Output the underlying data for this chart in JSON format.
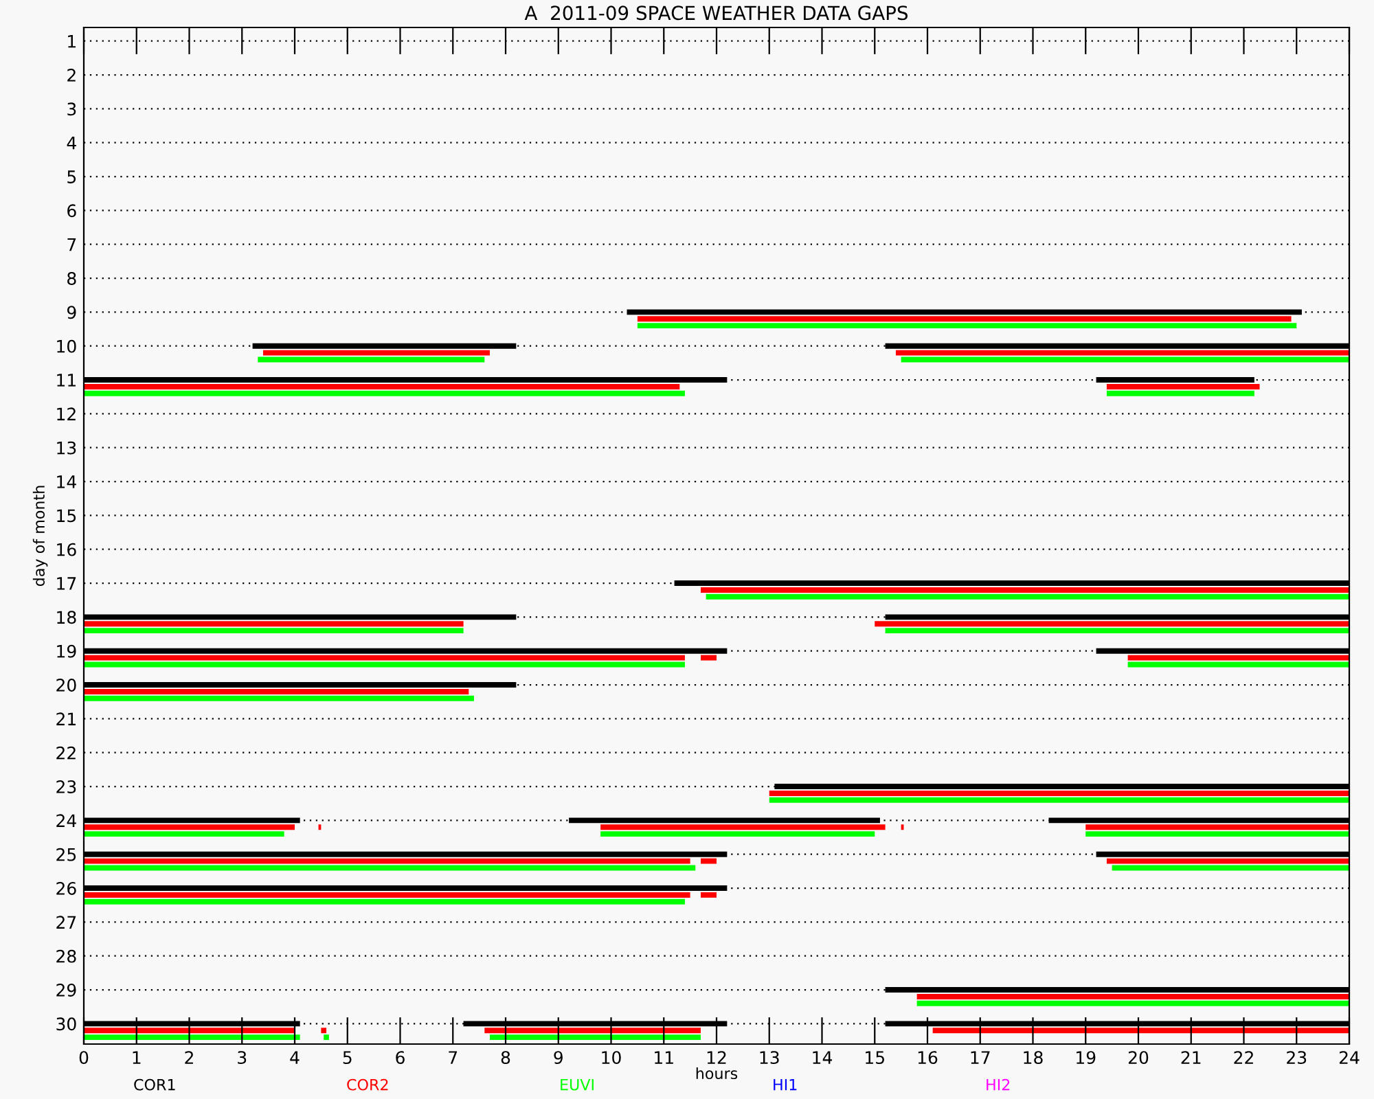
{
  "chart_data": {
    "type": "bar",
    "orientation": "horizontal",
    "title": "A  2011-09 SPACE WEATHER DATA GAPS",
    "xlabel": "hours",
    "ylabel": "day of month",
    "categories": [
      "1",
      "2",
      "3",
      "4",
      "5",
      "6",
      "7",
      "8",
      "9",
      "10",
      "11",
      "12",
      "13",
      "14",
      "15",
      "16",
      "17",
      "18",
      "19",
      "20",
      "21",
      "22",
      "23",
      "24",
      "25",
      "26",
      "27",
      "28",
      "29",
      "30"
    ],
    "xlim": [
      0,
      24
    ],
    "xticks": [
      0,
      1,
      2,
      3,
      4,
      5,
      6,
      7,
      8,
      9,
      10,
      11,
      12,
      13,
      14,
      15,
      16,
      17,
      18,
      19,
      20,
      21,
      22,
      23,
      24
    ],
    "grid": "y",
    "legend": "bottom",
    "series": [
      {
        "name": "COR1",
        "color": "#000000",
        "base": [
          null,
          null,
          null,
          null,
          null,
          null,
          null,
          null,
          10.3,
          3.2,
          0,
          null,
          null,
          null,
          null,
          null,
          11.2,
          0,
          0,
          0,
          null,
          null,
          13.1,
          0,
          0,
          0,
          null,
          null,
          15.2,
          0
        ],
        "values": [
          null,
          null,
          null,
          null,
          null,
          null,
          null,
          null,
          12.8,
          5.0,
          12.2,
          null,
          null,
          null,
          null,
          null,
          12.8,
          8.2,
          12.2,
          8.2,
          null,
          null,
          10.9,
          4.1,
          12.2,
          12.2,
          null,
          null,
          8.8,
          4.1
        ]
      },
      {
        "name": "COR2",
        "color": "#ff0000",
        "base": [
          null,
          null,
          null,
          null,
          null,
          null,
          null,
          null,
          10.5,
          3.4,
          0,
          null,
          null,
          null,
          null,
          null,
          11.7,
          0,
          0,
          0,
          null,
          null,
          13.0,
          0,
          0,
          0,
          null,
          null,
          15.8,
          0
        ],
        "values": [
          null,
          null,
          null,
          null,
          null,
          null,
          null,
          null,
          12.4,
          4.3,
          11.3,
          null,
          null,
          null,
          null,
          null,
          12.3,
          7.2,
          11.4,
          7.3,
          null,
          null,
          11.0,
          4.0,
          11.5,
          11.5,
          null,
          null,
          8.2,
          4.0
        ]
      },
      {
        "name": "EUVI",
        "color": "#00ff00",
        "base": [
          null,
          null,
          null,
          null,
          null,
          null,
          null,
          null,
          10.5,
          3.3,
          0,
          null,
          null,
          null,
          null,
          null,
          11.8,
          0,
          0,
          0,
          null,
          null,
          13.0,
          0,
          0,
          0,
          null,
          null,
          15.8,
          0
        ],
        "values": [
          null,
          null,
          null,
          null,
          null,
          null,
          null,
          null,
          12.5,
          4.3,
          11.4,
          null,
          null,
          null,
          null,
          null,
          12.2,
          7.2,
          11.4,
          7.4,
          null,
          null,
          11.0,
          3.8,
          11.6,
          11.4,
          null,
          null,
          8.2,
          4.1
        ]
      },
      {
        "name": "HI1",
        "color": "#0000ff",
        "base": [
          null,
          null,
          null,
          null,
          null,
          null,
          null,
          null,
          null,
          null,
          null,
          null,
          null,
          null,
          null,
          null,
          null,
          null,
          null,
          null,
          null,
          null,
          null,
          null,
          null,
          null,
          null,
          null,
          null,
          null
        ],
        "values": [
          null,
          null,
          null,
          null,
          null,
          null,
          null,
          null,
          null,
          null,
          null,
          null,
          null,
          null,
          null,
          null,
          null,
          null,
          null,
          null,
          null,
          null,
          null,
          null,
          null,
          null,
          null,
          null,
          null,
          null
        ]
      },
      {
        "name": "HI2",
        "color": "#ff00ff",
        "base": [
          null,
          null,
          null,
          null,
          null,
          null,
          null,
          null,
          null,
          null,
          null,
          null,
          null,
          null,
          null,
          null,
          null,
          null,
          null,
          null,
          null,
          null,
          null,
          null,
          null,
          null,
          null,
          null,
          null,
          null
        ],
        "values": [
          null,
          null,
          null,
          null,
          null,
          null,
          null,
          null,
          null,
          null,
          null,
          null,
          null,
          null,
          null,
          null,
          null,
          null,
          null,
          null,
          null,
          null,
          null,
          null,
          null,
          null,
          null,
          null,
          null,
          null
        ]
      },
      {
        "color": "#000000",
        "base": [
          null,
          null,
          null,
          null,
          null,
          null,
          null,
          null,
          null,
          15.2,
          19.2,
          null,
          null,
          null,
          null,
          null,
          null,
          15.2,
          19.2,
          null,
          null,
          null,
          null,
          9.2,
          19.2,
          null,
          null,
          null,
          null,
          7.2
        ],
        "values": [
          null,
          null,
          null,
          null,
          null,
          null,
          null,
          null,
          null,
          8.8,
          3.0,
          null,
          null,
          null,
          null,
          null,
          null,
          8.8,
          4.8,
          null,
          null,
          null,
          null,
          5.9,
          4.8,
          null,
          null,
          null,
          null,
          5.0
        ]
      },
      {
        "color": "#000000",
        "base": [
          null,
          null,
          null,
          null,
          null,
          null,
          null,
          null,
          null,
          null,
          null,
          null,
          null,
          null,
          null,
          null,
          null,
          null,
          null,
          null,
          null,
          null,
          null,
          18.3,
          null,
          null,
          null,
          null,
          null,
          15.2
        ],
        "values": [
          null,
          null,
          null,
          null,
          null,
          null,
          null,
          null,
          null,
          null,
          null,
          null,
          null,
          null,
          null,
          null,
          null,
          null,
          null,
          null,
          null,
          null,
          null,
          5.7,
          null,
          null,
          null,
          null,
          null,
          8.8
        ]
      },
      {
        "color": "#ff0000",
        "base": [
          null,
          null,
          null,
          null,
          null,
          null,
          null,
          null,
          null,
          15.4,
          19.4,
          null,
          null,
          null,
          null,
          null,
          null,
          15.0,
          11.7,
          null,
          null,
          null,
          null,
          4.45,
          11.7,
          11.7,
          null,
          null,
          null,
          4.5
        ],
        "values": [
          null,
          null,
          null,
          null,
          null,
          null,
          null,
          null,
          null,
          8.6,
          2.9,
          null,
          null,
          null,
          null,
          null,
          null,
          9.0,
          0.3,
          null,
          null,
          null,
          null,
          0.05,
          0.3,
          0.3,
          null,
          null,
          null,
          0.1
        ]
      },
      {
        "color": "#ff0000",
        "base": [
          null,
          null,
          null,
          null,
          null,
          null,
          null,
          null,
          null,
          null,
          null,
          null,
          null,
          null,
          null,
          null,
          null,
          null,
          19.8,
          null,
          null,
          null,
          null,
          9.8,
          19.4,
          null,
          null,
          null,
          null,
          7.6
        ],
        "values": [
          null,
          null,
          null,
          null,
          null,
          null,
          null,
          null,
          null,
          null,
          null,
          null,
          null,
          null,
          null,
          null,
          null,
          null,
          4.2,
          null,
          null,
          null,
          null,
          5.4,
          4.6,
          null,
          null,
          null,
          null,
          4.1
        ]
      },
      {
        "color": "#ff0000",
        "base": [
          null,
          null,
          null,
          null,
          null,
          null,
          null,
          null,
          null,
          null,
          null,
          null,
          null,
          null,
          null,
          null,
          null,
          null,
          null,
          null,
          null,
          null,
          null,
          15.5,
          null,
          null,
          null,
          null,
          null,
          16.1
        ],
        "values": [
          null,
          null,
          null,
          null,
          null,
          null,
          null,
          null,
          null,
          null,
          null,
          null,
          null,
          null,
          null,
          null,
          null,
          null,
          null,
          null,
          null,
          null,
          null,
          0.05,
          null,
          null,
          null,
          null,
          null,
          7.9
        ]
      },
      {
        "color": "#ff0000",
        "base": [
          null,
          null,
          null,
          null,
          null,
          null,
          null,
          null,
          null,
          null,
          null,
          null,
          null,
          null,
          null,
          null,
          null,
          null,
          null,
          null,
          null,
          null,
          null,
          19.0,
          null,
          null,
          null,
          null,
          null,
          null
        ],
        "values": [
          null,
          null,
          null,
          null,
          null,
          null,
          null,
          null,
          null,
          null,
          null,
          null,
          null,
          null,
          null,
          null,
          null,
          null,
          null,
          null,
          null,
          null,
          null,
          5.0,
          null,
          null,
          null,
          null,
          null,
          null
        ]
      },
      {
        "color": "#00ff00",
        "base": [
          null,
          null,
          null,
          null,
          null,
          null,
          null,
          null,
          null,
          15.5,
          19.4,
          null,
          null,
          null,
          null,
          null,
          null,
          15.2,
          19.8,
          null,
          null,
          null,
          null,
          9.8,
          19.5,
          null,
          null,
          null,
          null,
          4.55
        ],
        "values": [
          null,
          null,
          null,
          null,
          null,
          null,
          null,
          null,
          null,
          8.5,
          2.8,
          null,
          null,
          null,
          null,
          null,
          null,
          8.8,
          4.2,
          null,
          null,
          null,
          null,
          5.2,
          4.5,
          null,
          null,
          null,
          null,
          0.1
        ]
      },
      {
        "color": "#00ff00",
        "base": [
          null,
          null,
          null,
          null,
          null,
          null,
          null,
          null,
          null,
          null,
          null,
          null,
          null,
          null,
          null,
          null,
          null,
          null,
          null,
          null,
          null,
          null,
          null,
          19.0,
          null,
          null,
          null,
          null,
          null,
          7.7
        ],
        "values": [
          null,
          null,
          null,
          null,
          null,
          null,
          null,
          null,
          null,
          null,
          null,
          null,
          null,
          null,
          null,
          null,
          null,
          null,
          null,
          null,
          null,
          null,
          null,
          5.0,
          null,
          null,
          null,
          null,
          null,
          4.0
        ]
      }
    ]
  }
}
